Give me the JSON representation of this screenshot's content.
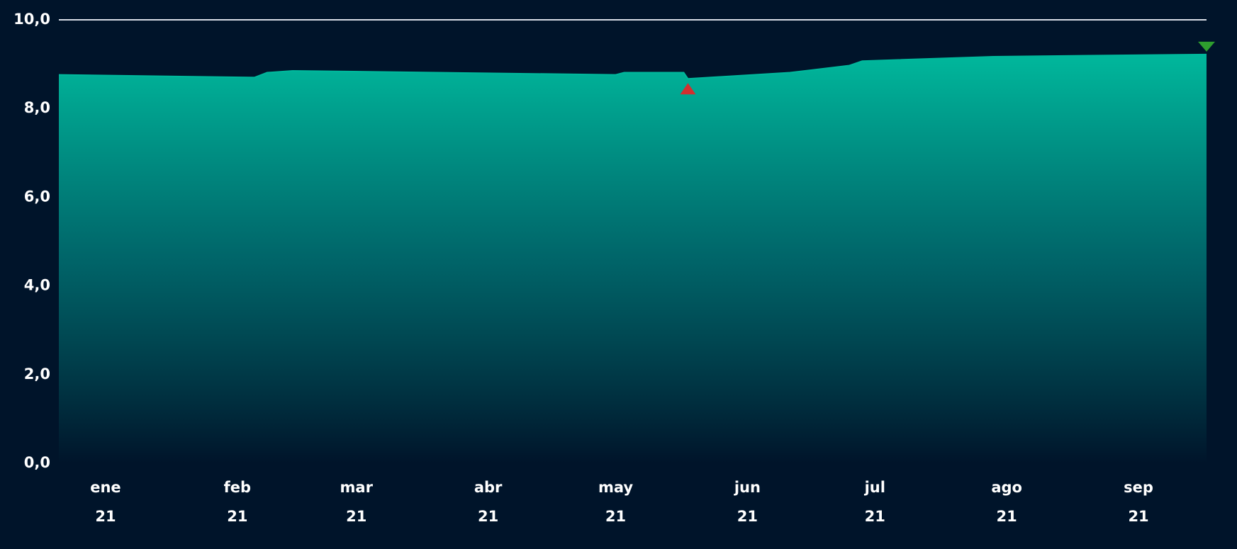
{
  "chart_data": {
    "type": "area",
    "x": [
      4,
      50,
      53,
      59,
      135,
      137,
      151,
      152,
      176,
      190,
      193,
      224,
      274
    ],
    "series": [
      {
        "color": "#00b89c",
        "values": [
          8.76,
          8.7,
          8.81,
          8.85,
          8.76,
          8.81,
          8.81,
          8.67,
          8.81,
          8.97,
          9.07,
          9.17,
          9.22
        ]
      }
    ],
    "min_marker_color": "#d32f2f",
    "max_marker_color": "#2e9e2e",
    "xlim": [
      4,
      274
    ],
    "xticks": [
      {
        "value": 15,
        "label": [
          "ene",
          "21"
        ]
      },
      {
        "value": 46,
        "label": [
          "feb",
          "21"
        ]
      },
      {
        "value": 74,
        "label": [
          "mar",
          "21"
        ]
      },
      {
        "value": 105,
        "label": [
          "abr",
          "21"
        ]
      },
      {
        "value": 135,
        "label": [
          "may",
          "21"
        ]
      },
      {
        "value": 166,
        "label": [
          "jun",
          "21"
        ]
      },
      {
        "value": 196,
        "label": [
          "jul",
          "21"
        ]
      },
      {
        "value": 227,
        "label": [
          "ago",
          "21"
        ]
      },
      {
        "value": 258,
        "label": [
          "sep",
          "21"
        ]
      }
    ],
    "ylim": [
      0,
      10
    ],
    "yticks": [
      {
        "value": 0,
        "label": "0,0"
      },
      {
        "value": 2,
        "label": "2,0"
      },
      {
        "value": 4,
        "label": "4,0"
      },
      {
        "value": 6,
        "label": "6,0"
      },
      {
        "value": 8,
        "label": "8,0"
      },
      {
        "value": 10,
        "label": "10,0"
      }
    ],
    "grid": false
  }
}
